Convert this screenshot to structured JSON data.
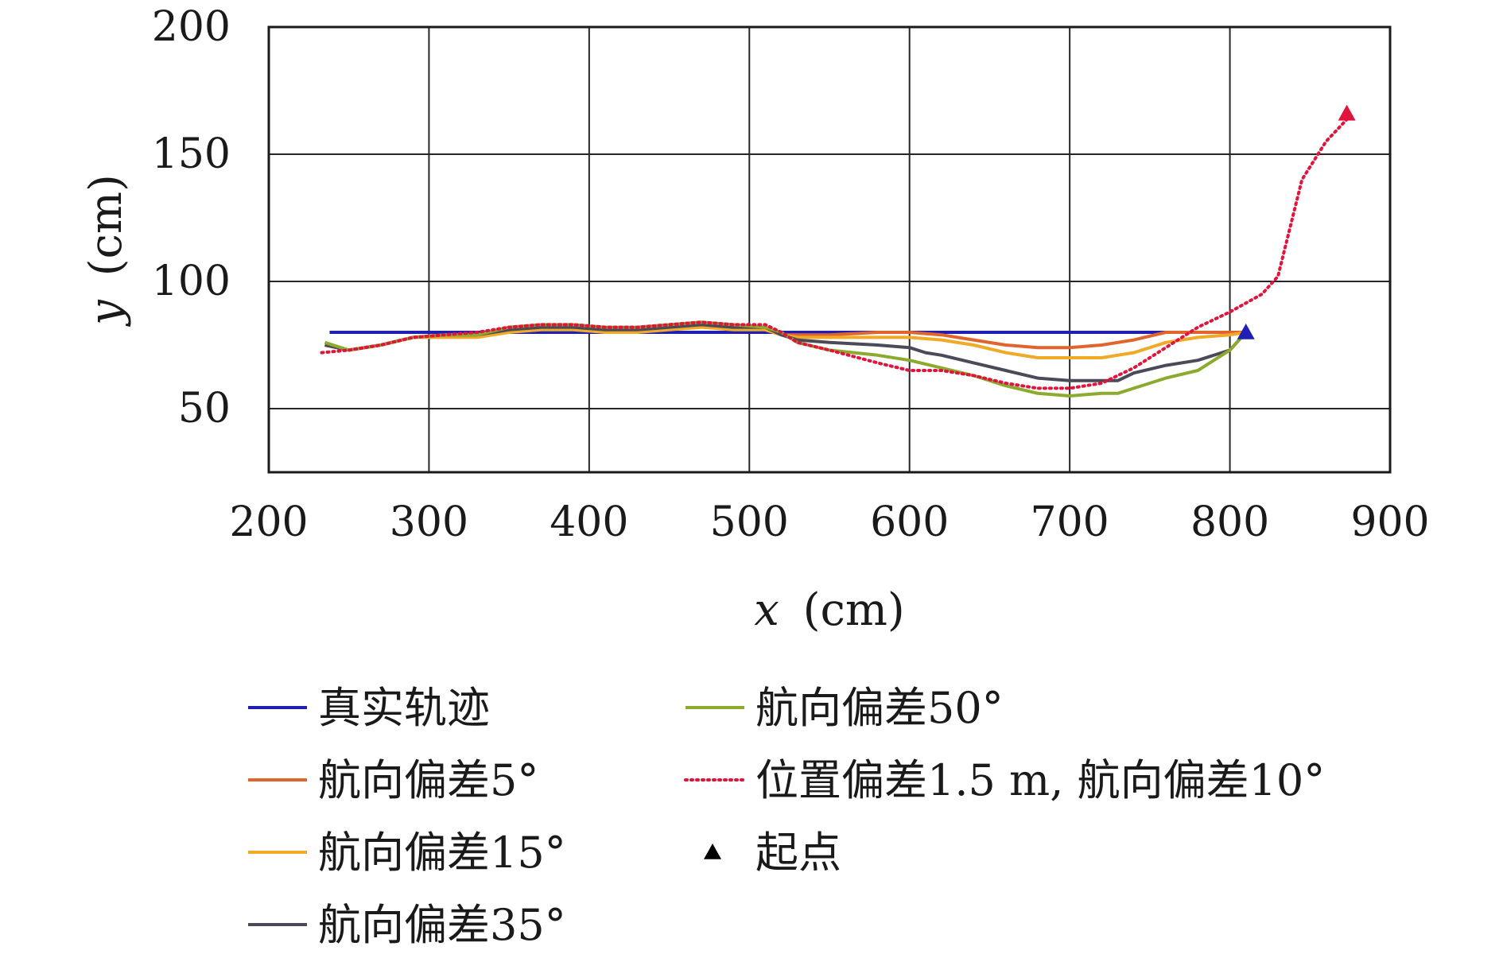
{
  "chart_data": {
    "type": "line",
    "title": "",
    "xlabel": "x (cm)",
    "ylabel": "y (cm)",
    "xlabel_var": "x",
    "xlabel_unit": "(cm)",
    "ylabel_var": "y",
    "ylabel_unit": "(cm)",
    "xlim": [
      200,
      900
    ],
    "ylim": [
      25,
      200
    ],
    "xticks": [
      200,
      300,
      400,
      500,
      600,
      700,
      800,
      900
    ],
    "yticks": [
      50,
      100,
      150,
      200
    ],
    "grid": true,
    "legend_position": "bottom",
    "series": [
      {
        "name": "真实轨迹",
        "color": "#1f1fb4",
        "style": "solid",
        "x": [
          238,
          810
        ],
        "y": [
          80,
          80
        ]
      },
      {
        "name": "航向偏差5°",
        "color": "#e0642c",
        "style": "solid",
        "x": [
          235,
          250,
          270,
          290,
          310,
          330,
          350,
          370,
          390,
          410,
          430,
          450,
          470,
          490,
          510,
          520,
          530,
          550,
          580,
          600,
          620,
          640,
          660,
          680,
          700,
          720,
          740,
          760,
          780,
          800,
          810
        ],
        "y": [
          75,
          73,
          75,
          78,
          79,
          79,
          81,
          82,
          82,
          81,
          81,
          82,
          83,
          82,
          81,
          79,
          79,
          79,
          80,
          80,
          79,
          77,
          75,
          74,
          74,
          75,
          77,
          80,
          80,
          80,
          80
        ]
      },
      {
        "name": "航向偏差15°",
        "color": "#f0aa28",
        "style": "solid",
        "x": [
          235,
          250,
          270,
          290,
          310,
          330,
          350,
          370,
          390,
          410,
          430,
          450,
          470,
          490,
          510,
          520,
          530,
          550,
          580,
          600,
          620,
          640,
          660,
          680,
          700,
          720,
          740,
          760,
          780,
          800,
          810
        ],
        "y": [
          75,
          73,
          75,
          78,
          78,
          78,
          80,
          81,
          81,
          80,
          80,
          81,
          82,
          81,
          81,
          79,
          78,
          78,
          78,
          78,
          77,
          75,
          72,
          70,
          70,
          70,
          72,
          76,
          78,
          79,
          80
        ]
      },
      {
        "name": "航向偏差35°",
        "color": "#4a4a58",
        "style": "solid",
        "x": [
          235,
          250,
          270,
          290,
          310,
          330,
          350,
          370,
          390,
          410,
          430,
          450,
          470,
          490,
          510,
          520,
          530,
          550,
          580,
          600,
          610,
          620,
          640,
          660,
          680,
          700,
          720,
          730,
          740,
          760,
          780,
          800,
          810
        ],
        "y": [
          75,
          73,
          75,
          78,
          79,
          79,
          81,
          82,
          82,
          81,
          81,
          82,
          83,
          82,
          82,
          79,
          77,
          76,
          75,
          74,
          72,
          71,
          68,
          65,
          62,
          61,
          61,
          61,
          64,
          67,
          69,
          73,
          80
        ]
      },
      {
        "name": "航向偏差50°",
        "color": "#8aab2e",
        "style": "solid",
        "x": [
          235,
          250,
          270,
          290,
          310,
          330,
          350,
          370,
          390,
          410,
          430,
          450,
          470,
          490,
          510,
          520,
          530,
          550,
          580,
          600,
          620,
          640,
          660,
          680,
          700,
          720,
          730,
          740,
          760,
          780,
          800,
          810
        ],
        "y": [
          76,
          73,
          75,
          78,
          79,
          79,
          82,
          83,
          83,
          82,
          82,
          83,
          84,
          83,
          82,
          80,
          76,
          73,
          71,
          69,
          66,
          63,
          59,
          56,
          55,
          56,
          56,
          58,
          62,
          65,
          73,
          80
        ]
      },
      {
        "name": "位置偏差1.5 m, 航向偏差10°",
        "color": "#e0143c",
        "style": "dotted",
        "x": [
          233,
          250,
          270,
          290,
          310,
          330,
          350,
          370,
          390,
          410,
          430,
          450,
          470,
          490,
          510,
          520,
          530,
          550,
          580,
          600,
          620,
          640,
          660,
          680,
          700,
          720,
          740,
          760,
          780,
          800,
          820,
          830,
          845,
          860,
          875
        ],
        "y": [
          72,
          73,
          75,
          78,
          79,
          80,
          82,
          83,
          83,
          82,
          82,
          83,
          84,
          83,
          83,
          80,
          76,
          73,
          68,
          65,
          65,
          63,
          60,
          58,
          58,
          60,
          66,
          74,
          82,
          88,
          95,
          102,
          140,
          155,
          165
        ]
      }
    ],
    "markers": [
      {
        "name": "起点",
        "shape": "triangle",
        "color": "#000000",
        "points": [
          {
            "x": 810,
            "y": 80,
            "color": "#1f1fb4"
          },
          {
            "x": 873,
            "y": 166,
            "color": "#e0143c"
          }
        ]
      }
    ]
  }
}
